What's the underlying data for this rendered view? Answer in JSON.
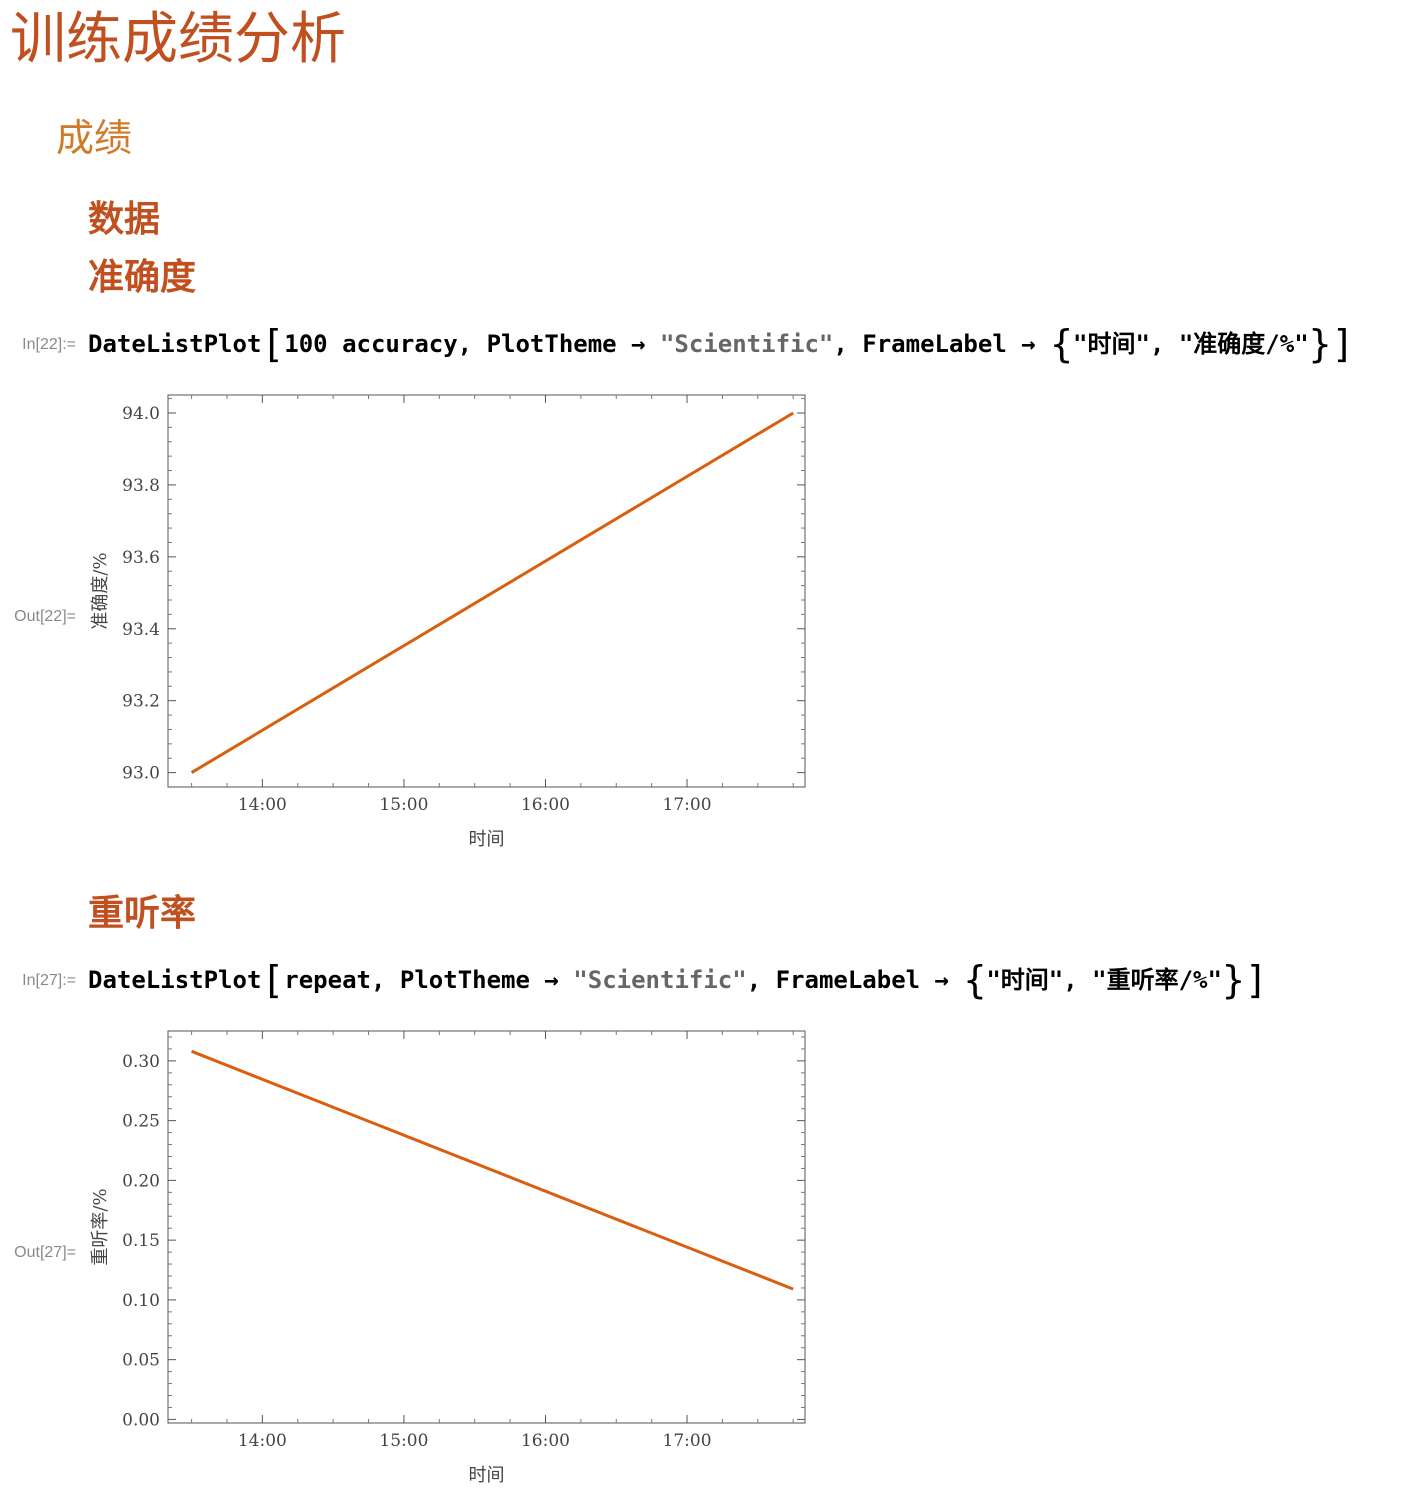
{
  "notebook": {
    "title": "训练成绩分析",
    "section": "成绩",
    "subsections": [
      "数据",
      "准确度",
      "重听率"
    ]
  },
  "cells": [
    {
      "in_label": "In[22]:=",
      "out_label": "Out[22]=",
      "code": {
        "func": "DateListPlot",
        "arg1": "100 accuracy",
        "opt1": "PlotTheme",
        "val1": "\"Scientific\"",
        "opt2": "FrameLabel",
        "label1": "\"时间\"",
        "label2": "\"准确度/%\""
      }
    },
    {
      "in_label": "In[27]:=",
      "out_label": "Out[27]=",
      "code": {
        "func": "DateListPlot",
        "arg1": "repeat",
        "opt1": "PlotTheme",
        "val1": "\"Scientific\"",
        "opt2": "FrameLabel",
        "label1": "\"时间\"",
        "label2": "\"重听率/%\""
      }
    }
  ],
  "chart_data": [
    {
      "type": "line",
      "xlabel": "时间",
      "ylabel": "准确度/%",
      "x": [
        "13:30",
        "17:45"
      ],
      "y": [
        93.0,
        94.0
      ],
      "xticks": [
        "14:00",
        "15:00",
        "16:00",
        "17:00"
      ],
      "yticks": [
        "93.0",
        "93.2",
        "93.4",
        "93.6",
        "93.8",
        "94.0"
      ],
      "xlim": [
        "13:20",
        "17:50"
      ],
      "ylim": [
        92.96,
        94.05
      ],
      "color": "#d95f0e",
      "grid": false
    },
    {
      "type": "line",
      "xlabel": "时间",
      "ylabel": "重听率/%",
      "x": [
        "13:30",
        "17:45"
      ],
      "y": [
        0.308,
        0.109
      ],
      "xticks": [
        "14:00",
        "15:00",
        "16:00",
        "17:00"
      ],
      "yticks": [
        "0.00",
        "0.05",
        "0.10",
        "0.15",
        "0.20",
        "0.25",
        "0.30"
      ],
      "xlim": [
        "13:20",
        "17:50"
      ],
      "ylim": [
        -0.003,
        0.325
      ],
      "color": "#d95f0e",
      "grid": false
    }
  ]
}
